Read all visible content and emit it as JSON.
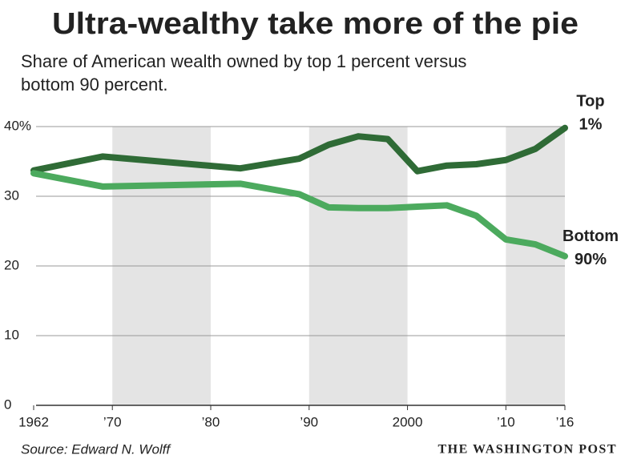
{
  "chart_data": {
    "type": "line",
    "title": "Ultra-wealthy take more of the pie",
    "subtitle": [
      "Share of American wealth owned by top 1 percent versus",
      "bottom 90 percent."
    ],
    "x": [
      1962,
      1969,
      1983,
      1989,
      1992,
      1995,
      1998,
      2001,
      2004,
      2007,
      2010,
      2013,
      2016
    ],
    "series": [
      {
        "name": "Top 1%",
        "color": "#2f6b36",
        "values": [
          33.7,
          35.7,
          34.0,
          35.4,
          37.4,
          38.6,
          38.2,
          33.6,
          34.4,
          34.6,
          35.2,
          36.8,
          39.8
        ]
      },
      {
        "name": "Bottom 90%",
        "color": "#4caa5e",
        "values": [
          33.3,
          31.4,
          31.8,
          30.3,
          28.4,
          28.3,
          28.3,
          28.5,
          28.7,
          27.2,
          23.8,
          23.1,
          21.4
        ]
      }
    ],
    "xlim": [
      1962,
      2016
    ],
    "xticks": [
      1962,
      {
        "value": 1970,
        "label": "’70"
      },
      {
        "value": 1980,
        "label": "’80"
      },
      {
        "value": 1990,
        "label": "’90"
      },
      2000,
      {
        "value": 2010,
        "label": "’10"
      },
      {
        "value": 2016,
        "label": "’16"
      }
    ],
    "ylim": [
      0,
      40
    ],
    "yticks": [
      0,
      10,
      20,
      30,
      {
        "value": 40,
        "label": "40%"
      }
    ],
    "shaded_bands": [
      [
        1970,
        1980
      ],
      [
        1990,
        2000
      ],
      [
        2010,
        2016
      ]
    ],
    "grid": true,
    "source": "Source: Edward N. Wolff",
    "credit": "THE WASHINGTON POST"
  }
}
